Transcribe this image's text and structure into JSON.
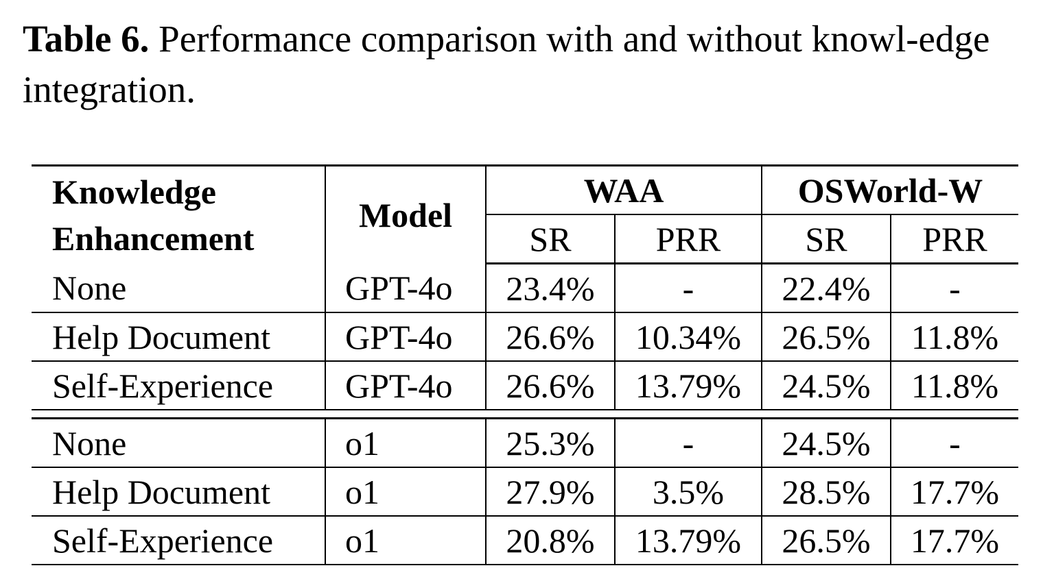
{
  "caption": {
    "label": "Table 6.",
    "text": "Performance comparison with and without knowl-edge integration."
  },
  "table": {
    "headers": {
      "knowledge_line1": "Knowledge",
      "knowledge_line2": "Enhancement",
      "model": "Model",
      "group1": "WAA",
      "group2": "OSWorld-W",
      "sr": "SR",
      "prr": "PRR"
    },
    "rows": [
      {
        "ke": "None",
        "model": "GPT-4o",
        "waa_sr": "23.4%",
        "waa_prr": "-",
        "osw_sr": "22.4%",
        "osw_prr": "-"
      },
      {
        "ke": "Help Document",
        "model": "GPT-4o",
        "waa_sr": "26.6%",
        "waa_prr": "10.34%",
        "osw_sr": "26.5%",
        "osw_prr": "11.8%"
      },
      {
        "ke": "Self-Experience",
        "model": "GPT-4o",
        "waa_sr": "26.6%",
        "waa_prr": "13.79%",
        "osw_sr": "24.5%",
        "osw_prr": "11.8%"
      },
      {
        "ke": "None",
        "model": "o1",
        "waa_sr": "25.3%",
        "waa_prr": "-",
        "osw_sr": "24.5%",
        "osw_prr": "-"
      },
      {
        "ke": "Help Document",
        "model": "o1",
        "waa_sr": "27.9%",
        "waa_prr": "3.5%",
        "osw_sr": "28.5%",
        "osw_prr": "17.7%"
      },
      {
        "ke": "Self-Experience",
        "model": "o1",
        "waa_sr": "20.8%",
        "waa_prr": "13.79%",
        "osw_sr": "26.5%",
        "osw_prr": "17.7%"
      }
    ]
  }
}
